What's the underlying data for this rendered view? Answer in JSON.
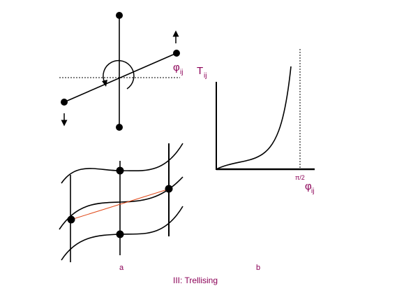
{
  "labels": {
    "phi_main": "φ",
    "phi_main_sub": "ij",
    "t_main": "T",
    "t_sub": "ij",
    "pi_over_2": "π/2",
    "phi_axis": "φ",
    "phi_axis_sub": "ij",
    "panel_a": "a",
    "panel_b": "b",
    "caption": "III: Trellising"
  },
  "colors": {
    "magenta": "#8b0057",
    "line": "#000000",
    "diagonal": "#e04a1a"
  }
}
